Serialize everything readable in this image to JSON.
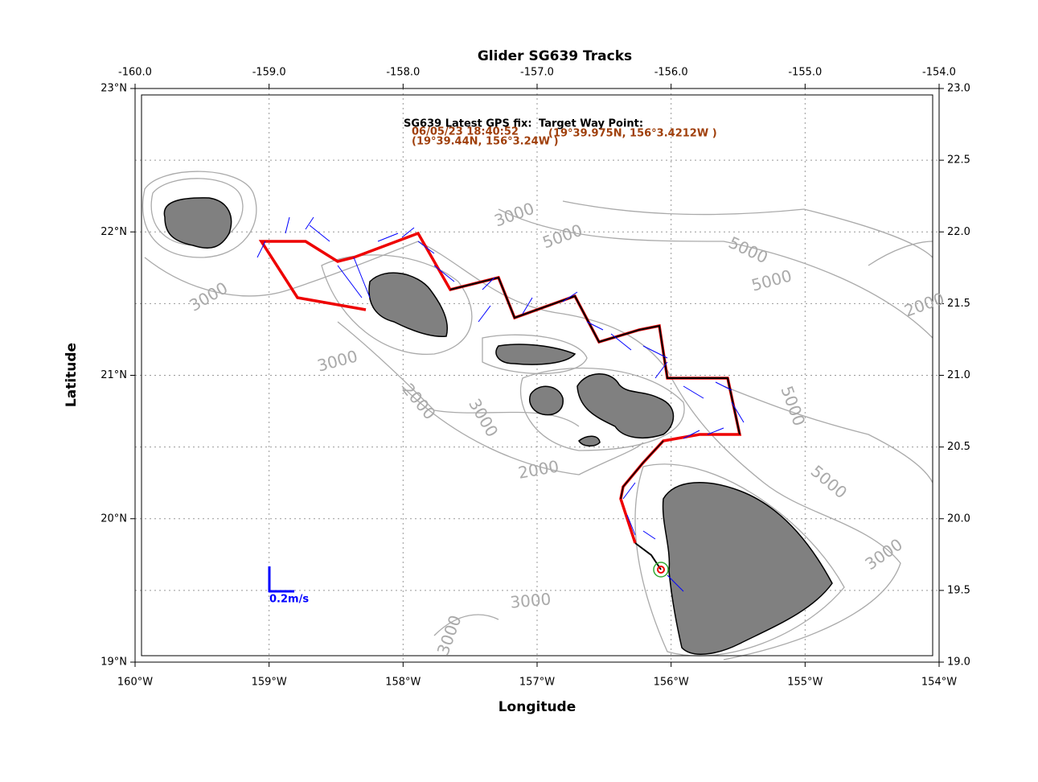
{
  "map": {
    "title": "Glider SG639 Tracks",
    "xlabel": "Longitude",
    "ylabel": "Latitude",
    "xlim": [
      -160,
      -154
    ],
    "ylim": [
      19,
      23
    ],
    "xticks_bottom": [
      {
        "value": -160,
        "label": "160°W"
      },
      {
        "value": -159,
        "label": "159°W"
      },
      {
        "value": -158,
        "label": "158°W"
      },
      {
        "value": -157,
        "label": "157°W"
      },
      {
        "value": -156,
        "label": "156°W"
      },
      {
        "value": -155,
        "label": "155°W"
      },
      {
        "value": -154,
        "label": "154°W"
      }
    ],
    "xticks_top": [
      {
        "value": -160,
        "label": "-160.0"
      },
      {
        "value": -159,
        "label": "-159.0"
      },
      {
        "value": -158,
        "label": "-158.0"
      },
      {
        "value": -157,
        "label": "-157.0"
      },
      {
        "value": -156,
        "label": "-156.0"
      },
      {
        "value": -155,
        "label": "-155.0"
      },
      {
        "value": -154,
        "label": "-154.0"
      }
    ],
    "yticks_left": [
      {
        "value": 19,
        "label": "19°N"
      },
      {
        "value": 20,
        "label": "20°N"
      },
      {
        "value": 21,
        "label": "21°N"
      },
      {
        "value": 22,
        "label": "22°N"
      },
      {
        "value": 23,
        "label": "23°N"
      }
    ],
    "yticks_right": [
      {
        "value": 19,
        "label": "19.0"
      },
      19.5,
      {
        "value": 20,
        "label": "20.0"
      },
      20.5,
      {
        "value": 21,
        "label": "21.0"
      },
      21.5,
      {
        "value": 22,
        "label": "22.0"
      },
      22.5,
      {
        "value": 23,
        "label": "23.0"
      }
    ],
    "gps": {
      "heading": "SG639 Latest GPS fix:",
      "time": "06/05/23 18:40:52",
      "position": "(19°39.44N, 156°3.24W )"
    },
    "target": {
      "heading": "Target Way Point:",
      "position": "(19°39.975N, 156°3.4212W )"
    },
    "scale_label": "0.2m/s",
    "contour_labels": [
      3000,
      5000,
      5000,
      5000,
      3000,
      3000,
      2000,
      3000,
      2000,
      5000,
      3000,
      5000,
      3000,
      3000,
      2000
    ]
  }
}
